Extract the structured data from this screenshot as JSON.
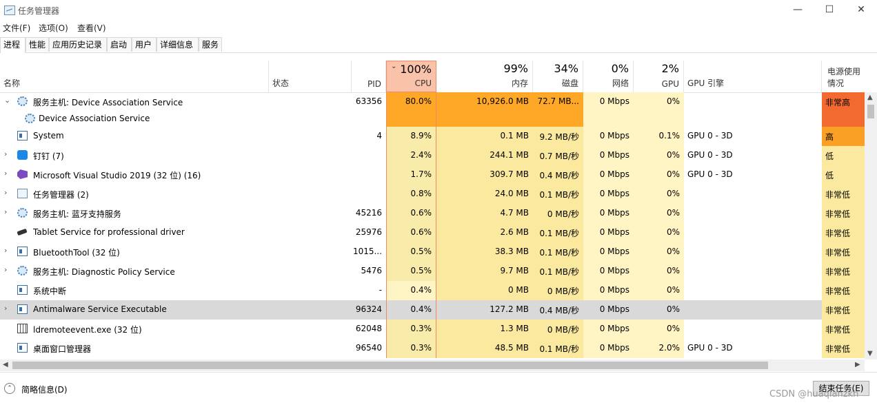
{
  "window": {
    "title": "任务管理器",
    "minimize": "—",
    "maximize": "☐",
    "close": "✕"
  },
  "menu": [
    "文件(F)",
    "选项(O)",
    "查看(V)"
  ],
  "tabs": [
    "进程",
    "性能",
    "应用历史记录",
    "启动",
    "用户",
    "详细信息",
    "服务"
  ],
  "columns": {
    "name": "名称",
    "status": "状态",
    "pid": "PID",
    "cpu": {
      "pct": "100%",
      "label": "CPU"
    },
    "mem": {
      "pct": "99%",
      "label": "内存"
    },
    "disk": {
      "pct": "34%",
      "label": "磁盘"
    },
    "net": {
      "pct": "0%",
      "label": "网络"
    },
    "gpu": {
      "pct": "2%",
      "label": "GPU"
    },
    "gpu_engine": "GPU 引擎",
    "power": "电源使用情况"
  },
  "colors": {
    "cpu_header": "#f9c2a9",
    "heat_light": "#fff4c4",
    "heat_mid": "#f9ecaa",
    "heat_strong": "#fbe9a0",
    "heat_max": "#ffa726",
    "power_veryhigh": "#f36a31",
    "power_high": "#f9a025",
    "power_low": "#fbe9a0"
  },
  "processes": [
    {
      "expand": "⌄",
      "icon": "gear-icon",
      "name": "服务主机: Device Association Service",
      "pid": "63356",
      "cpu": "80.0%",
      "mem": "10,926.0 MB",
      "disk": "72.7 MB...",
      "net": "0 Mbps",
      "gpu": "0%",
      "engine": "",
      "power": "非常高",
      "heat": "max",
      "tall": true,
      "child": "Device Association Service"
    },
    {
      "expand": "",
      "icon": "window-icon",
      "name": "System",
      "pid": "4",
      "cpu": "8.9%",
      "mem": "0.1 MB",
      "disk": "9.2 MB/秒",
      "net": "0 Mbps",
      "gpu": "0.1%",
      "engine": "GPU 0 - 3D",
      "power": "高",
      "heat": "mid"
    },
    {
      "expand": "›",
      "icon": "dingtalk-icon",
      "name": "钉钉 (7)",
      "pid": "",
      "cpu": "2.4%",
      "mem": "244.1 MB",
      "disk": "0.7 MB/秒",
      "net": "0 Mbps",
      "gpu": "0%",
      "engine": "GPU 0 - 3D",
      "power": "低",
      "heat": "mid"
    },
    {
      "expand": "›",
      "icon": "visual-studio-icon",
      "name": "Microsoft Visual Studio 2019 (32 位) (16)",
      "pid": "",
      "cpu": "1.7%",
      "mem": "309.7 MB",
      "disk": "0.4 MB/秒",
      "net": "0 Mbps",
      "gpu": "0%",
      "engine": "GPU 0 - 3D",
      "power": "低",
      "heat": "mid"
    },
    {
      "expand": "›",
      "icon": "task-manager-icon",
      "name": "任务管理器 (2)",
      "pid": "",
      "cpu": "0.8%",
      "mem": "24.0 MB",
      "disk": "0.1 MB/秒",
      "net": "0 Mbps",
      "gpu": "0%",
      "engine": "",
      "power": "非常低",
      "heat": "mid"
    },
    {
      "expand": "›",
      "icon": "gear-icon",
      "name": "服务主机: 蓝牙支持服务",
      "pid": "45216",
      "cpu": "0.6%",
      "mem": "4.7 MB",
      "disk": "0 MB/秒",
      "net": "0 Mbps",
      "gpu": "0%",
      "engine": "",
      "power": "非常低",
      "heat": "mid"
    },
    {
      "expand": "",
      "icon": "pen-icon",
      "name": "Tablet Service for professional driver",
      "pid": "25976",
      "cpu": "0.6%",
      "mem": "2.6 MB",
      "disk": "0.1 MB/秒",
      "net": "0 Mbps",
      "gpu": "0%",
      "engine": "",
      "power": "非常低",
      "heat": "mid"
    },
    {
      "expand": "›",
      "icon": "window-icon",
      "name": "BluetoothTool (32 位)",
      "pid": "1015...",
      "cpu": "0.5%",
      "mem": "38.3 MB",
      "disk": "0.1 MB/秒",
      "net": "0 Mbps",
      "gpu": "0%",
      "engine": "",
      "power": "非常低",
      "heat": "mid"
    },
    {
      "expand": "›",
      "icon": "gear-icon",
      "name": "服务主机: Diagnostic Policy Service",
      "pid": "5476",
      "cpu": "0.5%",
      "mem": "9.7 MB",
      "disk": "0.1 MB/秒",
      "net": "0 Mbps",
      "gpu": "0%",
      "engine": "",
      "power": "非常低",
      "heat": "mid"
    },
    {
      "expand": "",
      "icon": "window-icon",
      "name": "系统中断",
      "pid": "-",
      "cpu": "0.4%",
      "mem": "0 MB",
      "disk": "0 MB/秒",
      "net": "0 Mbps",
      "gpu": "0%",
      "engine": "",
      "power": "非常低",
      "heat": "light"
    },
    {
      "expand": "›",
      "icon": "window-icon",
      "name": "Antimalware Service Executable",
      "pid": "96324",
      "cpu": "0.4%",
      "mem": "127.2 MB",
      "disk": "0.4 MB/秒",
      "net": "0 Mbps",
      "gpu": "0%",
      "engine": "",
      "power": "非常低",
      "heat": "mid",
      "selected": true
    },
    {
      "expand": "",
      "icon": "ldremote-icon",
      "name": "ldremoteevent.exe (32 位)",
      "pid": "62048",
      "cpu": "0.3%",
      "mem": "1.3 MB",
      "disk": "0 MB/秒",
      "net": "0 Mbps",
      "gpu": "0%",
      "engine": "",
      "power": "非常低",
      "heat": "mid"
    },
    {
      "expand": "",
      "icon": "window-icon",
      "name": "桌面窗口管理器",
      "pid": "96540",
      "cpu": "0.3%",
      "mem": "48.5 MB",
      "disk": "0.1 MB/秒",
      "net": "0 Mbps",
      "gpu": "2.0%",
      "engine": "GPU 0 - 3D",
      "power": "非常低",
      "heat": "mid"
    }
  ],
  "footer": {
    "collapse_label": "简略信息(D)",
    "end_task": "结束任务(E)"
  },
  "watermark": "CSDN @huaqianzkh"
}
